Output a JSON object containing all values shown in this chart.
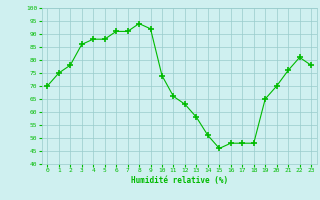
{
  "x": [
    0,
    1,
    2,
    3,
    4,
    5,
    6,
    7,
    8,
    9,
    10,
    11,
    12,
    13,
    14,
    15,
    16,
    17,
    18,
    19,
    20,
    21,
    22,
    23
  ],
  "y": [
    70,
    75,
    78,
    86,
    88,
    88,
    91,
    91,
    94,
    92,
    74,
    66,
    63,
    58,
    51,
    46,
    48,
    48,
    48,
    65,
    70,
    76,
    81,
    78
  ],
  "xlabel": "Humidité relative (%)",
  "ylim": [
    40,
    100
  ],
  "xlim": [
    -0.5,
    23.5
  ],
  "yticks": [
    40,
    45,
    50,
    55,
    60,
    65,
    70,
    75,
    80,
    85,
    90,
    95,
    100
  ],
  "xticks": [
    0,
    1,
    2,
    3,
    4,
    5,
    6,
    7,
    8,
    9,
    10,
    11,
    12,
    13,
    14,
    15,
    16,
    17,
    18,
    19,
    20,
    21,
    22,
    23
  ],
  "line_color": "#00bb00",
  "marker_color": "#00bb00",
  "bg_color": "#cff0f0",
  "grid_color": "#99cccc",
  "xlabel_color": "#00bb00",
  "tick_color": "#00bb00"
}
